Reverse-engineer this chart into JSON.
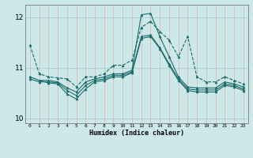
{
  "xlabel": "Humidex (Indice chaleur)",
  "ylabel": "",
  "background_color": "#cce8e8",
  "line_color": "#1a6b6b",
  "xlim": [
    -0.5,
    23.5
  ],
  "ylim": [
    9.9,
    12.25
  ],
  "yticks": [
    10,
    11,
    12
  ],
  "xticks": [
    0,
    1,
    2,
    3,
    4,
    5,
    6,
    7,
    8,
    9,
    10,
    11,
    12,
    13,
    14,
    15,
    16,
    17,
    18,
    19,
    20,
    21,
    22,
    23
  ],
  "series": {
    "line1": {
      "x": [
        0,
        1,
        2,
        3,
        4,
        5,
        6,
        7,
        8,
        9,
        10,
        11,
        12,
        13,
        14,
        15,
        16,
        17,
        18,
        19,
        20,
        21,
        22,
        23
      ],
      "y": [
        11.45,
        10.88,
        10.82,
        10.8,
        10.78,
        10.62,
        10.82,
        10.82,
        10.88,
        11.05,
        11.05,
        11.15,
        11.8,
        11.92,
        11.72,
        11.55,
        11.22,
        11.62,
        10.82,
        10.72,
        10.72,
        10.82,
        10.75,
        10.68
      ],
      "marker": "^",
      "linestyle": "--"
    },
    "line2": {
      "x": [
        0,
        1,
        2,
        3,
        4,
        5,
        6,
        7,
        8,
        9,
        10,
        11,
        12,
        13,
        14,
        15,
        16,
        17,
        18,
        19,
        20,
        21,
        22,
        23
      ],
      "y": [
        10.82,
        10.75,
        10.75,
        10.72,
        10.6,
        10.52,
        10.72,
        10.78,
        10.82,
        10.88,
        10.88,
        10.95,
        12.05,
        12.08,
        11.62,
        11.22,
        10.82,
        10.62,
        10.6,
        10.6,
        10.6,
        10.72,
        10.68,
        10.62
      ],
      "marker": "^",
      "linestyle": "-"
    },
    "line3": {
      "x": [
        0,
        1,
        2,
        3,
        4,
        5,
        6,
        7,
        8,
        9,
        10,
        11,
        12,
        13,
        14,
        15,
        16,
        17,
        18,
        19,
        20,
        21,
        22,
        23
      ],
      "y": [
        10.78,
        10.72,
        10.72,
        10.7,
        10.55,
        10.45,
        10.65,
        10.75,
        10.78,
        10.85,
        10.85,
        10.92,
        11.62,
        11.65,
        11.4,
        11.08,
        10.78,
        10.58,
        10.56,
        10.56,
        10.56,
        10.68,
        10.65,
        10.58
      ],
      "marker": "^",
      "linestyle": "-"
    },
    "line4": {
      "x": [
        1,
        2,
        3,
        4,
        5,
        6,
        7,
        8,
        9,
        10,
        11,
        12,
        13,
        14,
        15,
        16,
        17,
        18,
        19,
        20,
        21,
        22,
        23
      ],
      "y": [
        10.75,
        10.7,
        10.68,
        10.48,
        10.38,
        10.58,
        10.72,
        10.75,
        10.82,
        10.82,
        10.9,
        11.58,
        11.62,
        11.38,
        11.05,
        10.75,
        10.55,
        10.52,
        10.52,
        10.52,
        10.65,
        10.62,
        10.55
      ],
      "marker": "^",
      "linestyle": "-"
    }
  }
}
